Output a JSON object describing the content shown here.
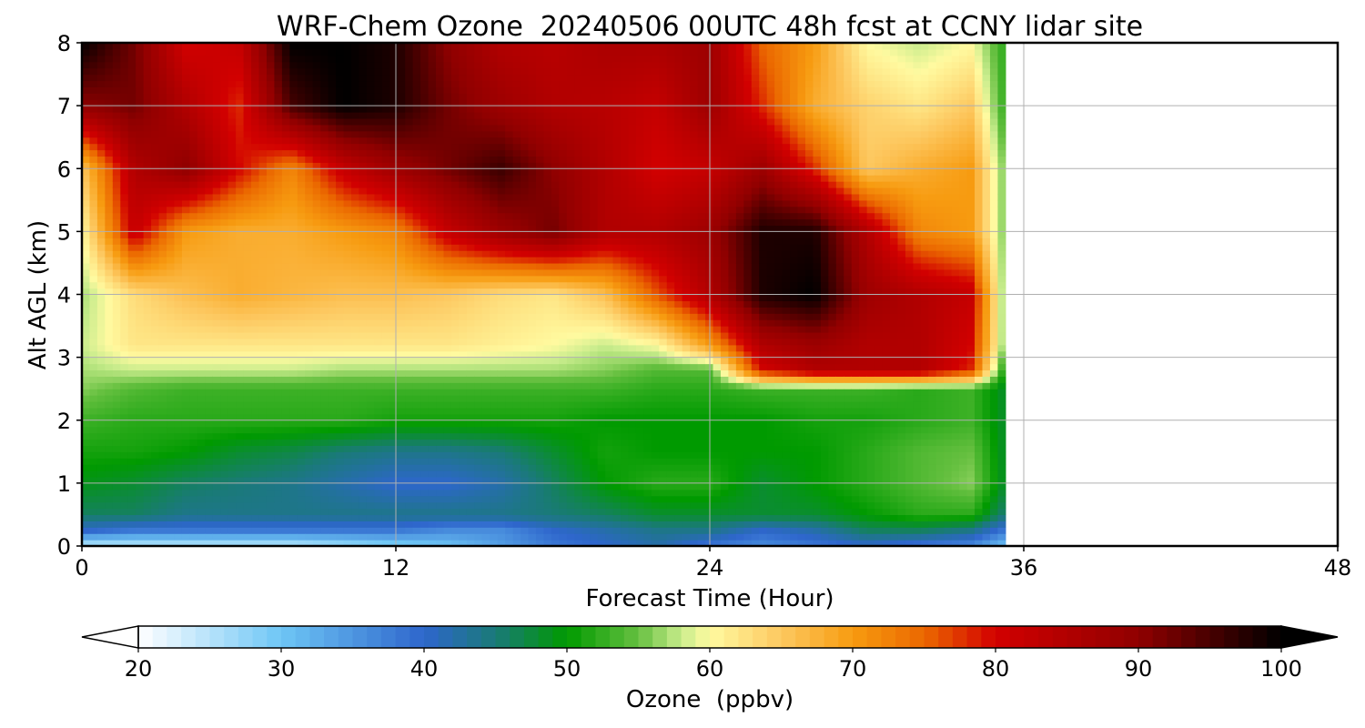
{
  "chart_data": {
    "type": "heatmap",
    "title": "WRF-Chem Ozone  20240506 00UTC 48h fcst at CCNY lidar site",
    "xlabel": "Forecast Time (Hour)",
    "ylabel": "Alt AGL (km)",
    "xlim": [
      0,
      48
    ],
    "ylim": [
      0,
      8
    ],
    "xticks": [
      0,
      12,
      24,
      36,
      48
    ],
    "yticks": [
      0,
      1,
      2,
      3,
      4,
      5,
      6,
      7,
      8
    ],
    "grid": true,
    "data_end_hour": 35.3,
    "colorbar": {
      "label": "Ozone  (ppbv)",
      "min": 20,
      "max": 100,
      "ticks": [
        20,
        30,
        40,
        50,
        60,
        70,
        80,
        90,
        100
      ],
      "extend": "both",
      "orientation": "horizontal",
      "stops": [
        {
          "v": 20,
          "c": "#ffffff"
        },
        {
          "v": 30,
          "c": "#6ec6f5"
        },
        {
          "v": 40,
          "c": "#2e66cc"
        },
        {
          "v": 45,
          "c": "#1a7a78"
        },
        {
          "v": 50,
          "c": "#009a00"
        },
        {
          "v": 55,
          "c": "#66c040"
        },
        {
          "v": 58,
          "c": "#c8ec8c"
        },
        {
          "v": 60,
          "c": "#fffaa0"
        },
        {
          "v": 65,
          "c": "#fdc860"
        },
        {
          "v": 70,
          "c": "#f79b10"
        },
        {
          "v": 75,
          "c": "#eb6800"
        },
        {
          "v": 80,
          "c": "#d20000"
        },
        {
          "v": 90,
          "c": "#900000"
        },
        {
          "v": 100,
          "c": "#000000"
        }
      ]
    },
    "x_hours": [
      0,
      2,
      4,
      6,
      8,
      10,
      12,
      14,
      16,
      18,
      20,
      22,
      24,
      26,
      28,
      30,
      32,
      34,
      35.3
    ],
    "y_km": [
      0,
      0.25,
      0.5,
      1,
      1.5,
      2,
      2.5,
      2.8,
      3.2,
      4,
      5,
      6,
      7,
      8
    ],
    "z_ozone_ppbv": [
      [
        24,
        24,
        24,
        24,
        24,
        26,
        28,
        30,
        34,
        38,
        40,
        42,
        38,
        36,
        38,
        40,
        38,
        36,
        30
      ],
      [
        40,
        38,
        38,
        38,
        38,
        38,
        38,
        36,
        36,
        40,
        42,
        44,
        44,
        40,
        42,
        46,
        46,
        44,
        38
      ],
      [
        46,
        46,
        44,
        44,
        44,
        44,
        44,
        44,
        44,
        45,
        46,
        48,
        48,
        48,
        48,
        50,
        52,
        52,
        45
      ],
      [
        49,
        48,
        46,
        45,
        44,
        42,
        40,
        40,
        42,
        46,
        50,
        52,
        52,
        48,
        50,
        52,
        54,
        56,
        48
      ],
      [
        51,
        51,
        50,
        48,
        47,
        45,
        44,
        44,
        45,
        48,
        51,
        50,
        50,
        50,
        50,
        52,
        54,
        55,
        48
      ],
      [
        53,
        52,
        52,
        52,
        52,
        52,
        51,
        51,
        51,
        51,
        50,
        50,
        50,
        50,
        51,
        51,
        52,
        53,
        48
      ],
      [
        56,
        54,
        53,
        53,
        53,
        53,
        53,
        53,
        53,
        53,
        53,
        52,
        52,
        53,
        53,
        53,
        52,
        53,
        48
      ],
      [
        57,
        58,
        58,
        58,
        58,
        57,
        57,
        57,
        57,
        57,
        56,
        54,
        54,
        80,
        85,
        85,
        85,
        78,
        50
      ],
      [
        58,
        62,
        62,
        62,
        62,
        62,
        62,
        62,
        61,
        60,
        58,
        60,
        70,
        85,
        88,
        85,
        85,
        80,
        55
      ],
      [
        57,
        63,
        66,
        68,
        67,
        66,
        66,
        65,
        63,
        62,
        66,
        76,
        85,
        98,
        100,
        88,
        85,
        82,
        55
      ],
      [
        60,
        82,
        70,
        68,
        68,
        70,
        72,
        82,
        88,
        92,
        85,
        85,
        88,
        98,
        98,
        85,
        72,
        70,
        55
      ],
      [
        65,
        85,
        90,
        80,
        72,
        82,
        88,
        92,
        96,
        90,
        85,
        80,
        82,
        88,
        78,
        65,
        68,
        70,
        55
      ],
      [
        90,
        92,
        85,
        78,
        95,
        100,
        98,
        92,
        88,
        85,
        84,
        82,
        88,
        78,
        68,
        64,
        62,
        65,
        52
      ],
      [
        100,
        92,
        80,
        82,
        100,
        100,
        98,
        90,
        85,
        84,
        86,
        86,
        88,
        75,
        70,
        60,
        58,
        60,
        52
      ]
    ]
  }
}
